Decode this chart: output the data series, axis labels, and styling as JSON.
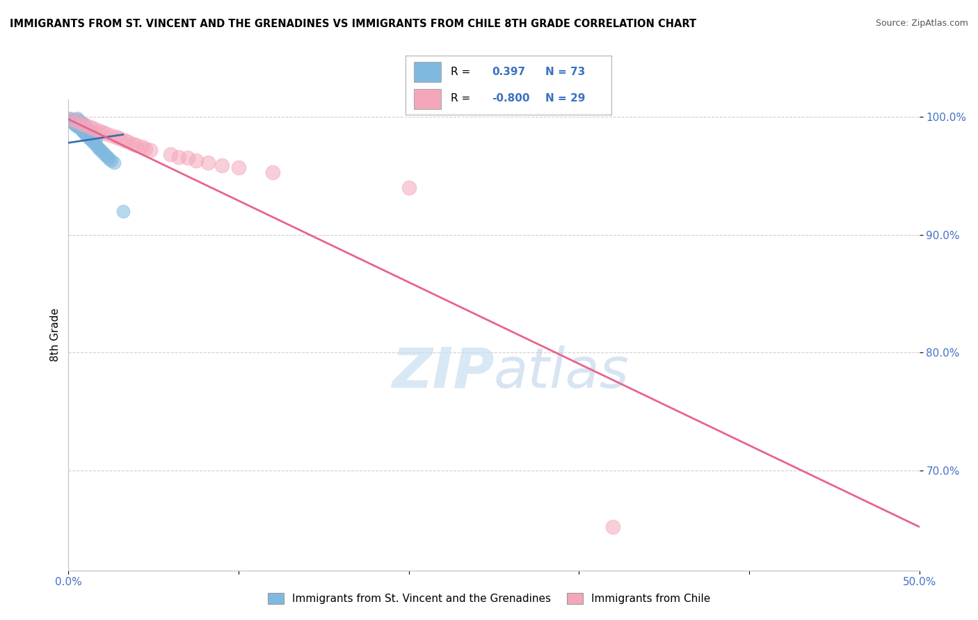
{
  "title": "IMMIGRANTS FROM ST. VINCENT AND THE GRENADINES VS IMMIGRANTS FROM CHILE 8TH GRADE CORRELATION CHART",
  "source": "Source: ZipAtlas.com",
  "ylabel": "8th Grade",
  "xlim": [
    0.0,
    0.5
  ],
  "ylim": [
    0.615,
    1.015
  ],
  "ytick_positions": [
    0.7,
    0.8,
    0.9,
    1.0
  ],
  "ytick_labels": [
    "70.0%",
    "80.0%",
    "90.0%",
    "100.0%"
  ],
  "blue_color": "#7fb9e0",
  "pink_color": "#f4a7bb",
  "blue_line_color": "#3a6fad",
  "pink_line_color": "#e8648a",
  "R_blue": 0.397,
  "N_blue": 73,
  "R_pink": -0.8,
  "N_pink": 29,
  "watermark": "ZIPatlas",
  "watermark_color": "#c5ddf0",
  "title_fontsize": 10.5,
  "source_fontsize": 9,
  "blue_scatter_x": [
    0.001,
    0.002,
    0.003,
    0.003,
    0.003,
    0.004,
    0.004,
    0.004,
    0.005,
    0.005,
    0.005,
    0.005,
    0.006,
    0.006,
    0.006,
    0.006,
    0.007,
    0.007,
    0.007,
    0.007,
    0.008,
    0.008,
    0.008,
    0.008,
    0.009,
    0.009,
    0.009,
    0.009,
    0.01,
    0.01,
    0.01,
    0.011,
    0.011,
    0.011,
    0.012,
    0.012,
    0.012,
    0.013,
    0.013,
    0.014,
    0.014,
    0.015,
    0.015,
    0.015,
    0.016,
    0.016,
    0.001,
    0.002,
    0.003,
    0.004,
    0.005,
    0.006,
    0.007,
    0.008,
    0.009,
    0.01,
    0.011,
    0.012,
    0.013,
    0.014,
    0.015,
    0.016,
    0.017,
    0.018,
    0.019,
    0.02,
    0.021,
    0.022,
    0.023,
    0.024,
    0.025,
    0.027,
    0.032
  ],
  "blue_scatter_y": [
    0.998,
    0.996,
    0.995,
    0.994,
    0.997,
    0.993,
    0.995,
    0.998,
    0.992,
    0.994,
    0.996,
    0.999,
    0.991,
    0.993,
    0.995,
    0.997,
    0.99,
    0.992,
    0.994,
    0.996,
    0.989,
    0.991,
    0.993,
    0.995,
    0.988,
    0.99,
    0.992,
    0.994,
    0.987,
    0.989,
    0.991,
    0.986,
    0.988,
    0.99,
    0.985,
    0.987,
    0.989,
    0.984,
    0.986,
    0.983,
    0.985,
    0.982,
    0.984,
    0.986,
    0.981,
    0.983,
    0.999,
    0.997,
    0.996,
    0.994,
    0.993,
    0.991,
    0.99,
    0.988,
    0.987,
    0.985,
    0.984,
    0.982,
    0.981,
    0.979,
    0.978,
    0.976,
    0.975,
    0.973,
    0.972,
    0.97,
    0.969,
    0.967,
    0.966,
    0.964,
    0.963,
    0.961,
    0.92
  ],
  "pink_scatter_x": [
    0.002,
    0.005,
    0.008,
    0.01,
    0.013,
    0.015,
    0.018,
    0.02,
    0.022,
    0.025,
    0.028,
    0.03,
    0.033,
    0.035,
    0.038,
    0.04,
    0.043,
    0.045,
    0.048,
    0.06,
    0.065,
    0.07,
    0.075,
    0.082,
    0.09,
    0.1,
    0.12,
    0.2,
    0.32
  ],
  "pink_scatter_y": [
    0.998,
    0.996,
    0.994,
    0.993,
    0.991,
    0.99,
    0.988,
    0.987,
    0.986,
    0.984,
    0.983,
    0.982,
    0.98,
    0.979,
    0.977,
    0.976,
    0.975,
    0.973,
    0.972,
    0.968,
    0.966,
    0.965,
    0.963,
    0.961,
    0.959,
    0.957,
    0.953,
    0.94,
    0.652
  ],
  "pink_line_x0": 0.0,
  "pink_line_y0": 0.998,
  "pink_line_x1": 0.5,
  "pink_line_y1": 0.652,
  "blue_line_x0": 0.0,
  "blue_line_y0": 0.978,
  "blue_line_x1": 0.032,
  "blue_line_y1": 0.985
}
